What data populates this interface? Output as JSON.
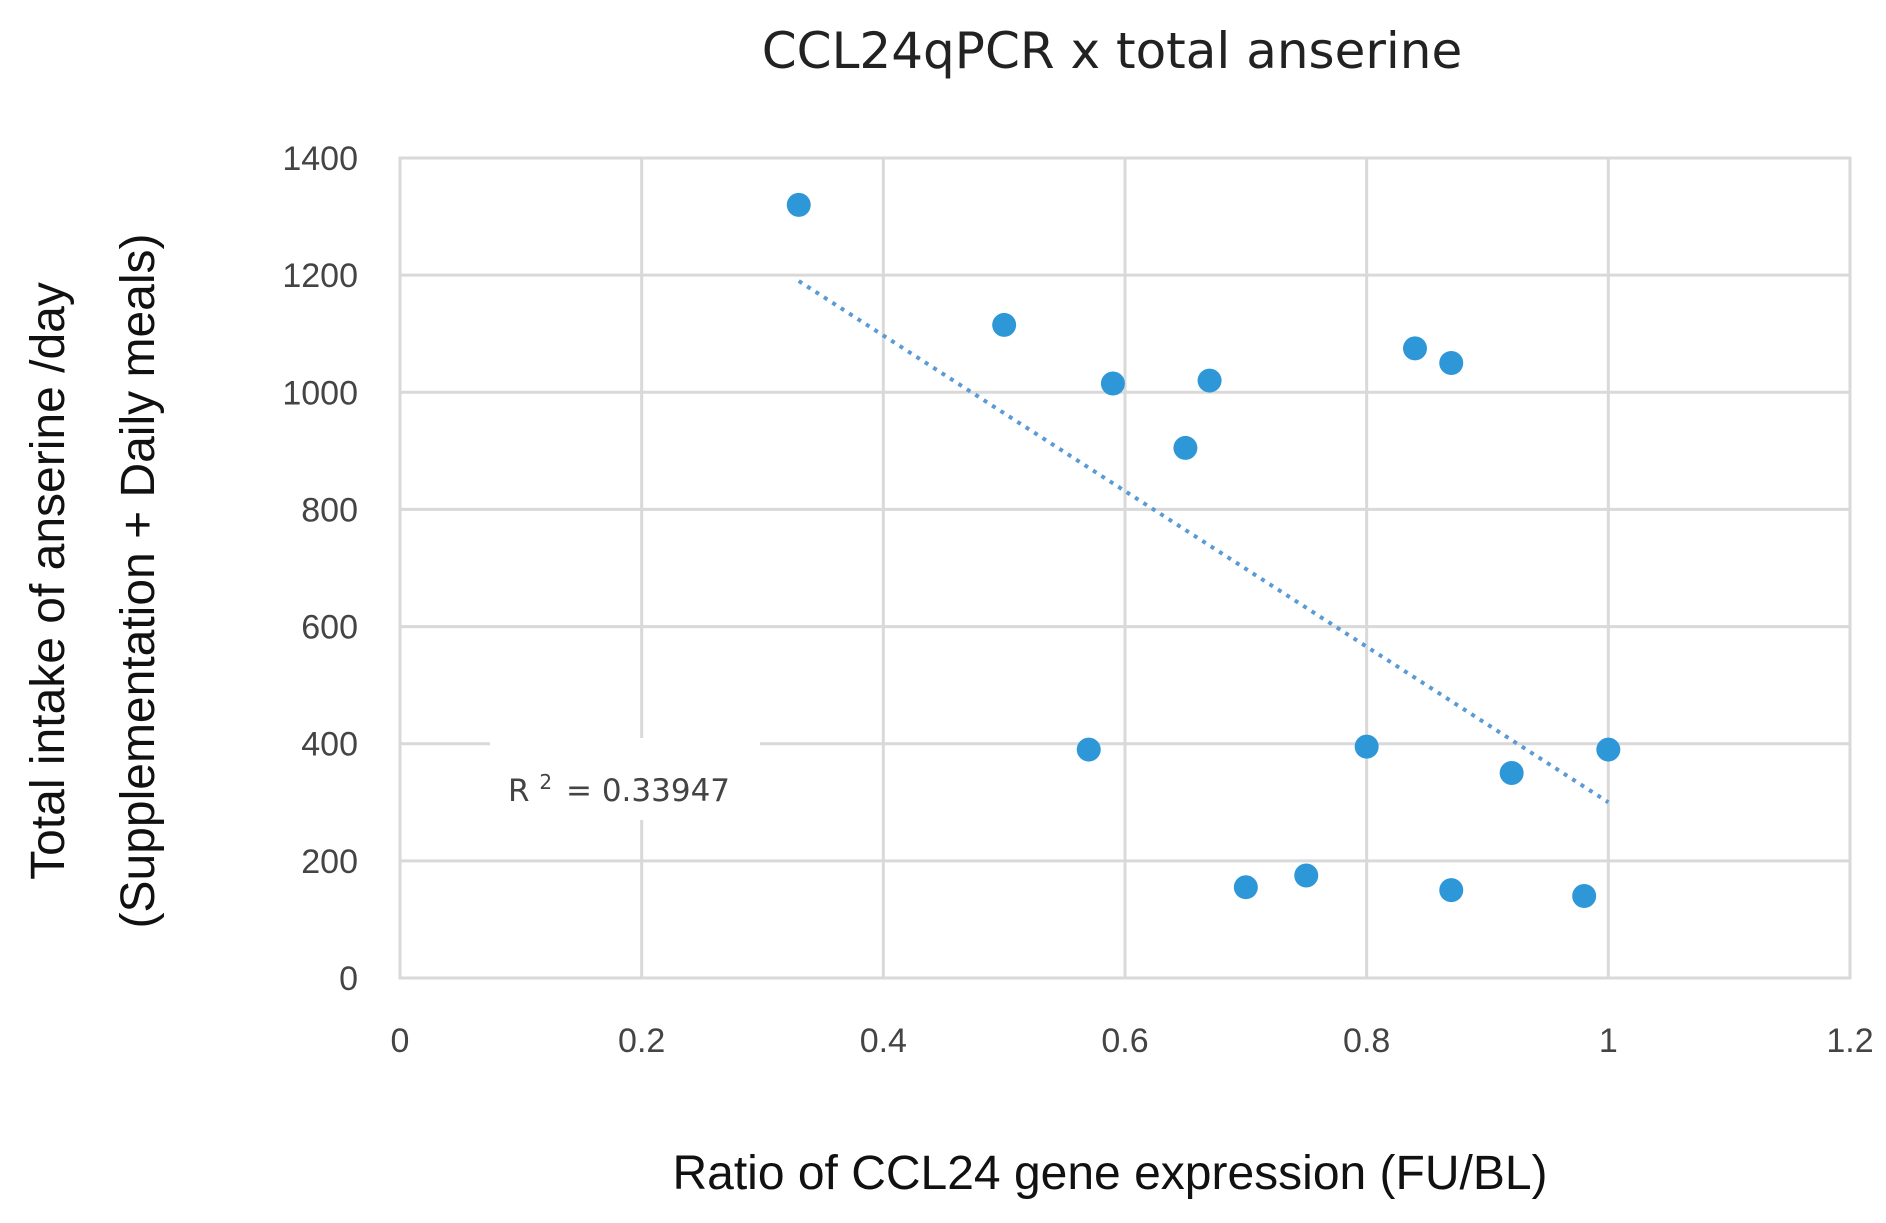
{
  "chart_data": {
    "type": "scatter",
    "title": "CCL24qPCR x total anserine",
    "xlabel": "Ratio of CCL24 gene expression (FU/BL)",
    "ylabel": "Total intake of anserine /day",
    "ylabel_line2": "(Supplementation + Daily meals)",
    "xlim": [
      0,
      1.2
    ],
    "ylim": [
      0,
      1400
    ],
    "x_ticks": [
      0,
      0.2,
      0.4,
      0.6,
      0.8,
      1,
      1.2
    ],
    "x_tick_labels": [
      "0",
      "0.2",
      "0.4",
      "0.6",
      "0.8",
      "1",
      "1.2"
    ],
    "y_ticks": [
      0,
      200,
      400,
      600,
      800,
      1000,
      1200,
      1400
    ],
    "y_tick_labels": [
      "0",
      "200",
      "400",
      "600",
      "800",
      "1000",
      "1200",
      "1400"
    ],
    "grid": true,
    "points": [
      {
        "x": 0.33,
        "y": 1320
      },
      {
        "x": 0.5,
        "y": 1115
      },
      {
        "x": 0.59,
        "y": 1015
      },
      {
        "x": 0.67,
        "y": 1020
      },
      {
        "x": 0.65,
        "y": 905
      },
      {
        "x": 0.84,
        "y": 1075
      },
      {
        "x": 0.87,
        "y": 1050
      },
      {
        "x": 0.57,
        "y": 390
      },
      {
        "x": 0.8,
        "y": 395
      },
      {
        "x": 0.92,
        "y": 350
      },
      {
        "x": 1.0,
        "y": 390
      },
      {
        "x": 0.7,
        "y": 155
      },
      {
        "x": 0.75,
        "y": 175
      },
      {
        "x": 0.87,
        "y": 150
      },
      {
        "x": 0.98,
        "y": 140
      }
    ],
    "trendline": {
      "type": "linear",
      "x_start": 0.33,
      "y_start": 1190,
      "x_end": 1.0,
      "y_end": 300
    },
    "r_squared": {
      "prefix": "R",
      "superscript": "2",
      "value": "= 0.33947"
    },
    "colors": {
      "points": "#2e97d8",
      "trendline": "#5b9bd5",
      "grid": "#d9d9d9"
    }
  }
}
